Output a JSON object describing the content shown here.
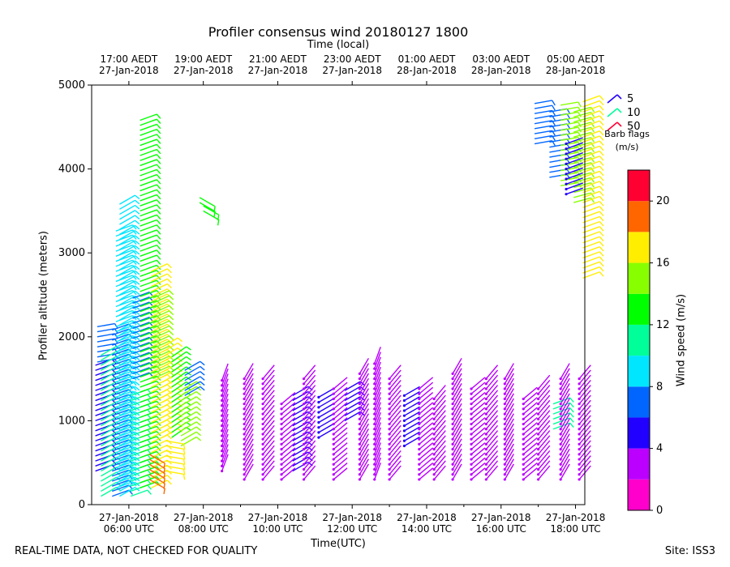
{
  "chart_data": {
    "type": "wind-barb-profile",
    "title": "Profiler consensus wind 20180127 1800",
    "xlabel": "Time(UTC)",
    "x2label": "Time (local)",
    "ylabel": "Profiler altitude (meters)",
    "colorbar_label": "Wind speed (m/s)",
    "ylim": [
      0,
      5000
    ],
    "y_ticks": [
      0,
      1000,
      2000,
      3000,
      4000,
      5000
    ],
    "xlim_utc_hours": [
      5.0,
      18.25
    ],
    "x_ticks_utc": [
      {
        "hour": 6,
        "line1": "27-Jan-2018",
        "line2": "06:00 UTC"
      },
      {
        "hour": 8,
        "line1": "27-Jan-2018",
        "line2": "08:00 UTC"
      },
      {
        "hour": 10,
        "line1": "27-Jan-2018",
        "line2": "10:00 UTC"
      },
      {
        "hour": 12,
        "line1": "27-Jan-2018",
        "line2": "12:00 UTC"
      },
      {
        "hour": 14,
        "line1": "27-Jan-2018",
        "line2": "14:00 UTC"
      },
      {
        "hour": 16,
        "line1": "27-Jan-2018",
        "line2": "16:00 UTC"
      },
      {
        "hour": 18,
        "line1": "27-Jan-2018",
        "line2": "18:00 UTC"
      }
    ],
    "x_ticks_local": [
      {
        "hour": 6,
        "line1": "17:00 AEDT",
        "line2": "27-Jan-2018"
      },
      {
        "hour": 8,
        "line1": "19:00 AEDT",
        "line2": "27-Jan-2018"
      },
      {
        "hour": 10,
        "line1": "21:00 AEDT",
        "line2": "27-Jan-2018"
      },
      {
        "hour": 12,
        "line1": "23:00 AEDT",
        "line2": "27-Jan-2018"
      },
      {
        "hour": 14,
        "line1": "01:00 AEDT",
        "line2": "28-Jan-2018"
      },
      {
        "hour": 16,
        "line1": "03:00 AEDT",
        "line2": "28-Jan-2018"
      },
      {
        "hour": 18,
        "line1": "05:00 AEDT",
        "line2": "28-Jan-2018"
      }
    ],
    "colorbar": {
      "vmin": 0,
      "vmax": 22,
      "ticks": [
        0,
        4,
        8,
        12,
        16,
        20
      ],
      "bands": [
        {
          "from": 0,
          "to": 2,
          "color": "#ff00cc"
        },
        {
          "from": 2,
          "to": 4,
          "color": "#bb00ff"
        },
        {
          "from": 4,
          "to": 6,
          "color": "#2200ff"
        },
        {
          "from": 6,
          "to": 8,
          "color": "#0066ff"
        },
        {
          "from": 8,
          "to": 10,
          "color": "#00e6ff"
        },
        {
          "from": 10,
          "to": 12,
          "color": "#00ff99"
        },
        {
          "from": 12,
          "to": 14,
          "color": "#00ff00"
        },
        {
          "from": 14,
          "to": 16,
          "color": "#88ff00"
        },
        {
          "from": 16,
          "to": 18,
          "color": "#ffee00"
        },
        {
          "from": 18,
          "to": 20,
          "color": "#ff6600"
        },
        {
          "from": 20,
          "to": 22,
          "color": "#ff0033"
        }
      ]
    },
    "barb_legend": {
      "entries": [
        {
          "label": "5",
          "color": "#2200ff"
        },
        {
          "label": "10",
          "color": "#00ff99"
        },
        {
          "label": "50",
          "color": "#ff0033"
        }
      ],
      "caption_line1": "Barb flags",
      "caption_line2": "(m/s)"
    },
    "wind_columns": [
      {
        "t": 5.1,
        "bottom": 400,
        "top": 1700,
        "speed": 5,
        "dir": 250
      },
      {
        "t": 5.15,
        "bottom": 1700,
        "top": 2150,
        "speed": 6,
        "dir": 260
      },
      {
        "t": 5.25,
        "bottom": 100,
        "top": 1800,
        "speed": 10,
        "dir": 240
      },
      {
        "t": 5.55,
        "bottom": 100,
        "top": 2100,
        "speed": 7,
        "dir": 250
      },
      {
        "t": 5.65,
        "bottom": 200,
        "top": 3300,
        "speed": 9,
        "dir": 250
      },
      {
        "t": 5.75,
        "bottom": 100,
        "top": 3600,
        "speed": 9,
        "dir": 240
      },
      {
        "t": 6.05,
        "bottom": 100,
        "top": 1300,
        "speed": 10,
        "dir": 250
      },
      {
        "t": 6.1,
        "bottom": 1500,
        "top": 2500,
        "speed": 7,
        "dir": 250
      },
      {
        "t": 6.3,
        "bottom": 200,
        "top": 4600,
        "speed": 12,
        "dir": 250
      },
      {
        "t": 6.6,
        "bottom": 200,
        "top": 2800,
        "speed": 16,
        "dir": 245
      },
      {
        "t": 6.65,
        "bottom": 1500,
        "top": 2500,
        "speed": 15,
        "dir": 245
      },
      {
        "t": 6.9,
        "bottom": 800,
        "top": 1900,
        "speed": 16,
        "dir": 240
      },
      {
        "t": 7.15,
        "bottom": 800,
        "top": 1800,
        "speed": 13,
        "dir": 235
      },
      {
        "t": 7.4,
        "bottom": 700,
        "top": 1400,
        "speed": 14,
        "dir": 240
      },
      {
        "t": 6.55,
        "bottom": 300,
        "top": 600,
        "speed": 19,
        "dir": 300
      },
      {
        "t": 7.0,
        "bottom": 400,
        "top": 800,
        "speed": 17,
        "dir": 280
      },
      {
        "t": 7.5,
        "bottom": 1300,
        "top": 1600,
        "speed": 6,
        "dir": 240
      },
      {
        "t": 7.9,
        "bottom": 3600,
        "top": 3700,
        "speed": 12,
        "dir": 300
      },
      {
        "t": 8.0,
        "bottom": 3500,
        "top": 3600,
        "speed": 12,
        "dir": 300
      },
      {
        "t": 8.5,
        "bottom": 400,
        "top": 1500,
        "speed": 2,
        "dir": 200
      },
      {
        "t": 9.1,
        "bottom": 300,
        "top": 1500,
        "speed": 2,
        "dir": 210
      },
      {
        "t": 9.6,
        "bottom": 300,
        "top": 1500,
        "speed": 2,
        "dir": 220
      },
      {
        "t": 10.1,
        "bottom": 300,
        "top": 1200,
        "speed": 2,
        "dir": 230
      },
      {
        "t": 10.4,
        "bottom": 400,
        "top": 1300,
        "speed": 5,
        "dir": 240
      },
      {
        "t": 10.7,
        "bottom": 300,
        "top": 1500,
        "speed": 2,
        "dir": 220
      },
      {
        "t": 11.1,
        "bottom": 800,
        "top": 1300,
        "speed": 4,
        "dir": 240
      },
      {
        "t": 11.5,
        "bottom": 300,
        "top": 1400,
        "speed": 2,
        "dir": 230
      },
      {
        "t": 11.8,
        "bottom": 1000,
        "top": 1400,
        "speed": 5,
        "dir": 240
      },
      {
        "t": 12.2,
        "bottom": 300,
        "top": 1600,
        "speed": 2,
        "dir": 210
      },
      {
        "t": 12.6,
        "bottom": 300,
        "top": 1700,
        "speed": 2,
        "dir": 200
      },
      {
        "t": 13.0,
        "bottom": 300,
        "top": 1500,
        "speed": 2,
        "dir": 220
      },
      {
        "t": 13.4,
        "bottom": 700,
        "top": 1300,
        "speed": 4,
        "dir": 240
      },
      {
        "t": 13.8,
        "bottom": 300,
        "top": 1400,
        "speed": 2,
        "dir": 230
      },
      {
        "t": 14.2,
        "bottom": 300,
        "top": 1300,
        "speed": 2,
        "dir": 220
      },
      {
        "t": 14.7,
        "bottom": 300,
        "top": 1600,
        "speed": 2,
        "dir": 210
      },
      {
        "t": 15.2,
        "bottom": 300,
        "top": 1400,
        "speed": 2,
        "dir": 230
      },
      {
        "t": 15.6,
        "bottom": 300,
        "top": 1500,
        "speed": 2,
        "dir": 220
      },
      {
        "t": 16.1,
        "bottom": 300,
        "top": 1500,
        "speed": 2,
        "dir": 210
      },
      {
        "t": 16.6,
        "bottom": 300,
        "top": 1300,
        "speed": 2,
        "dir": 230
      },
      {
        "t": 17.0,
        "bottom": 300,
        "top": 1400,
        "speed": 2,
        "dir": 220
      },
      {
        "t": 17.4,
        "bottom": 900,
        "top": 1200,
        "speed": 10,
        "dir": 250
      },
      {
        "t": 17.6,
        "bottom": 300,
        "top": 1500,
        "speed": 2,
        "dir": 210
      },
      {
        "t": 18.1,
        "bottom": 300,
        "top": 1500,
        "speed": 2,
        "dir": 220
      },
      {
        "t": 16.9,
        "bottom": 4300,
        "top": 4800,
        "speed": 6,
        "dir": 260
      },
      {
        "t": 17.3,
        "bottom": 3900,
        "top": 4700,
        "speed": 7,
        "dir": 260
      },
      {
        "t": 17.6,
        "bottom": 3800,
        "top": 4800,
        "speed": 15,
        "dir": 260
      },
      {
        "t": 17.95,
        "bottom": 3600,
        "top": 4700,
        "speed": 14,
        "dir": 255
      },
      {
        "t": 18.2,
        "bottom": 2700,
        "top": 4800,
        "speed": 17,
        "dir": 250
      },
      {
        "t": 17.75,
        "bottom": 3700,
        "top": 4300,
        "speed": 4,
        "dir": 250
      }
    ]
  },
  "footer": {
    "left": "REAL-TIME DATA, NOT CHECKED FOR QUALITY",
    "right": "Site: ISS3"
  }
}
